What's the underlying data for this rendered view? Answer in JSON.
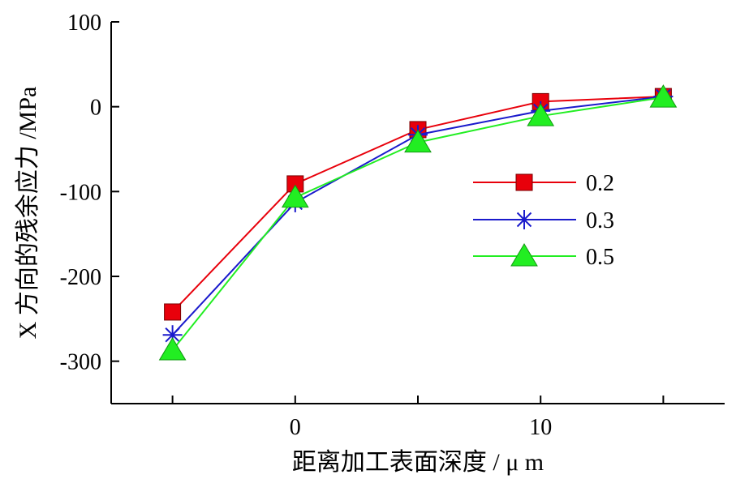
{
  "chart_data": {
    "type": "line",
    "xlabel": "距离加工表面深度 / μ m",
    "ylabel": "X 方向的残余应力 /MPa",
    "x": [
      -5,
      0,
      5,
      10,
      15
    ],
    "xlim": [
      -7.5,
      17.5
    ],
    "xticks": [
      0,
      10
    ],
    "xtick_labels": [
      "0",
      "10"
    ],
    "ylim": [
      -350,
      100
    ],
    "yticks": [
      100,
      0,
      -100,
      -200,
      -300
    ],
    "ytick_labels": [
      "100",
      "0",
      "-100",
      "-200",
      "-300"
    ],
    "grid": false,
    "legend_position": "right",
    "series": [
      {
        "name": "0.2",
        "values": [
          -242,
          -91,
          -27,
          6,
          12
        ],
        "color": "#e8000b",
        "marker": "square"
      },
      {
        "name": "0.3",
        "values": [
          -269,
          -113,
          -33,
          -5,
          12
        ],
        "color": "#1a1acc",
        "marker": "asterisk"
      },
      {
        "name": "0.5",
        "values": [
          -287,
          -107,
          -42,
          -11,
          11
        ],
        "color": "#22ee22",
        "marker": "triangle"
      }
    ]
  }
}
